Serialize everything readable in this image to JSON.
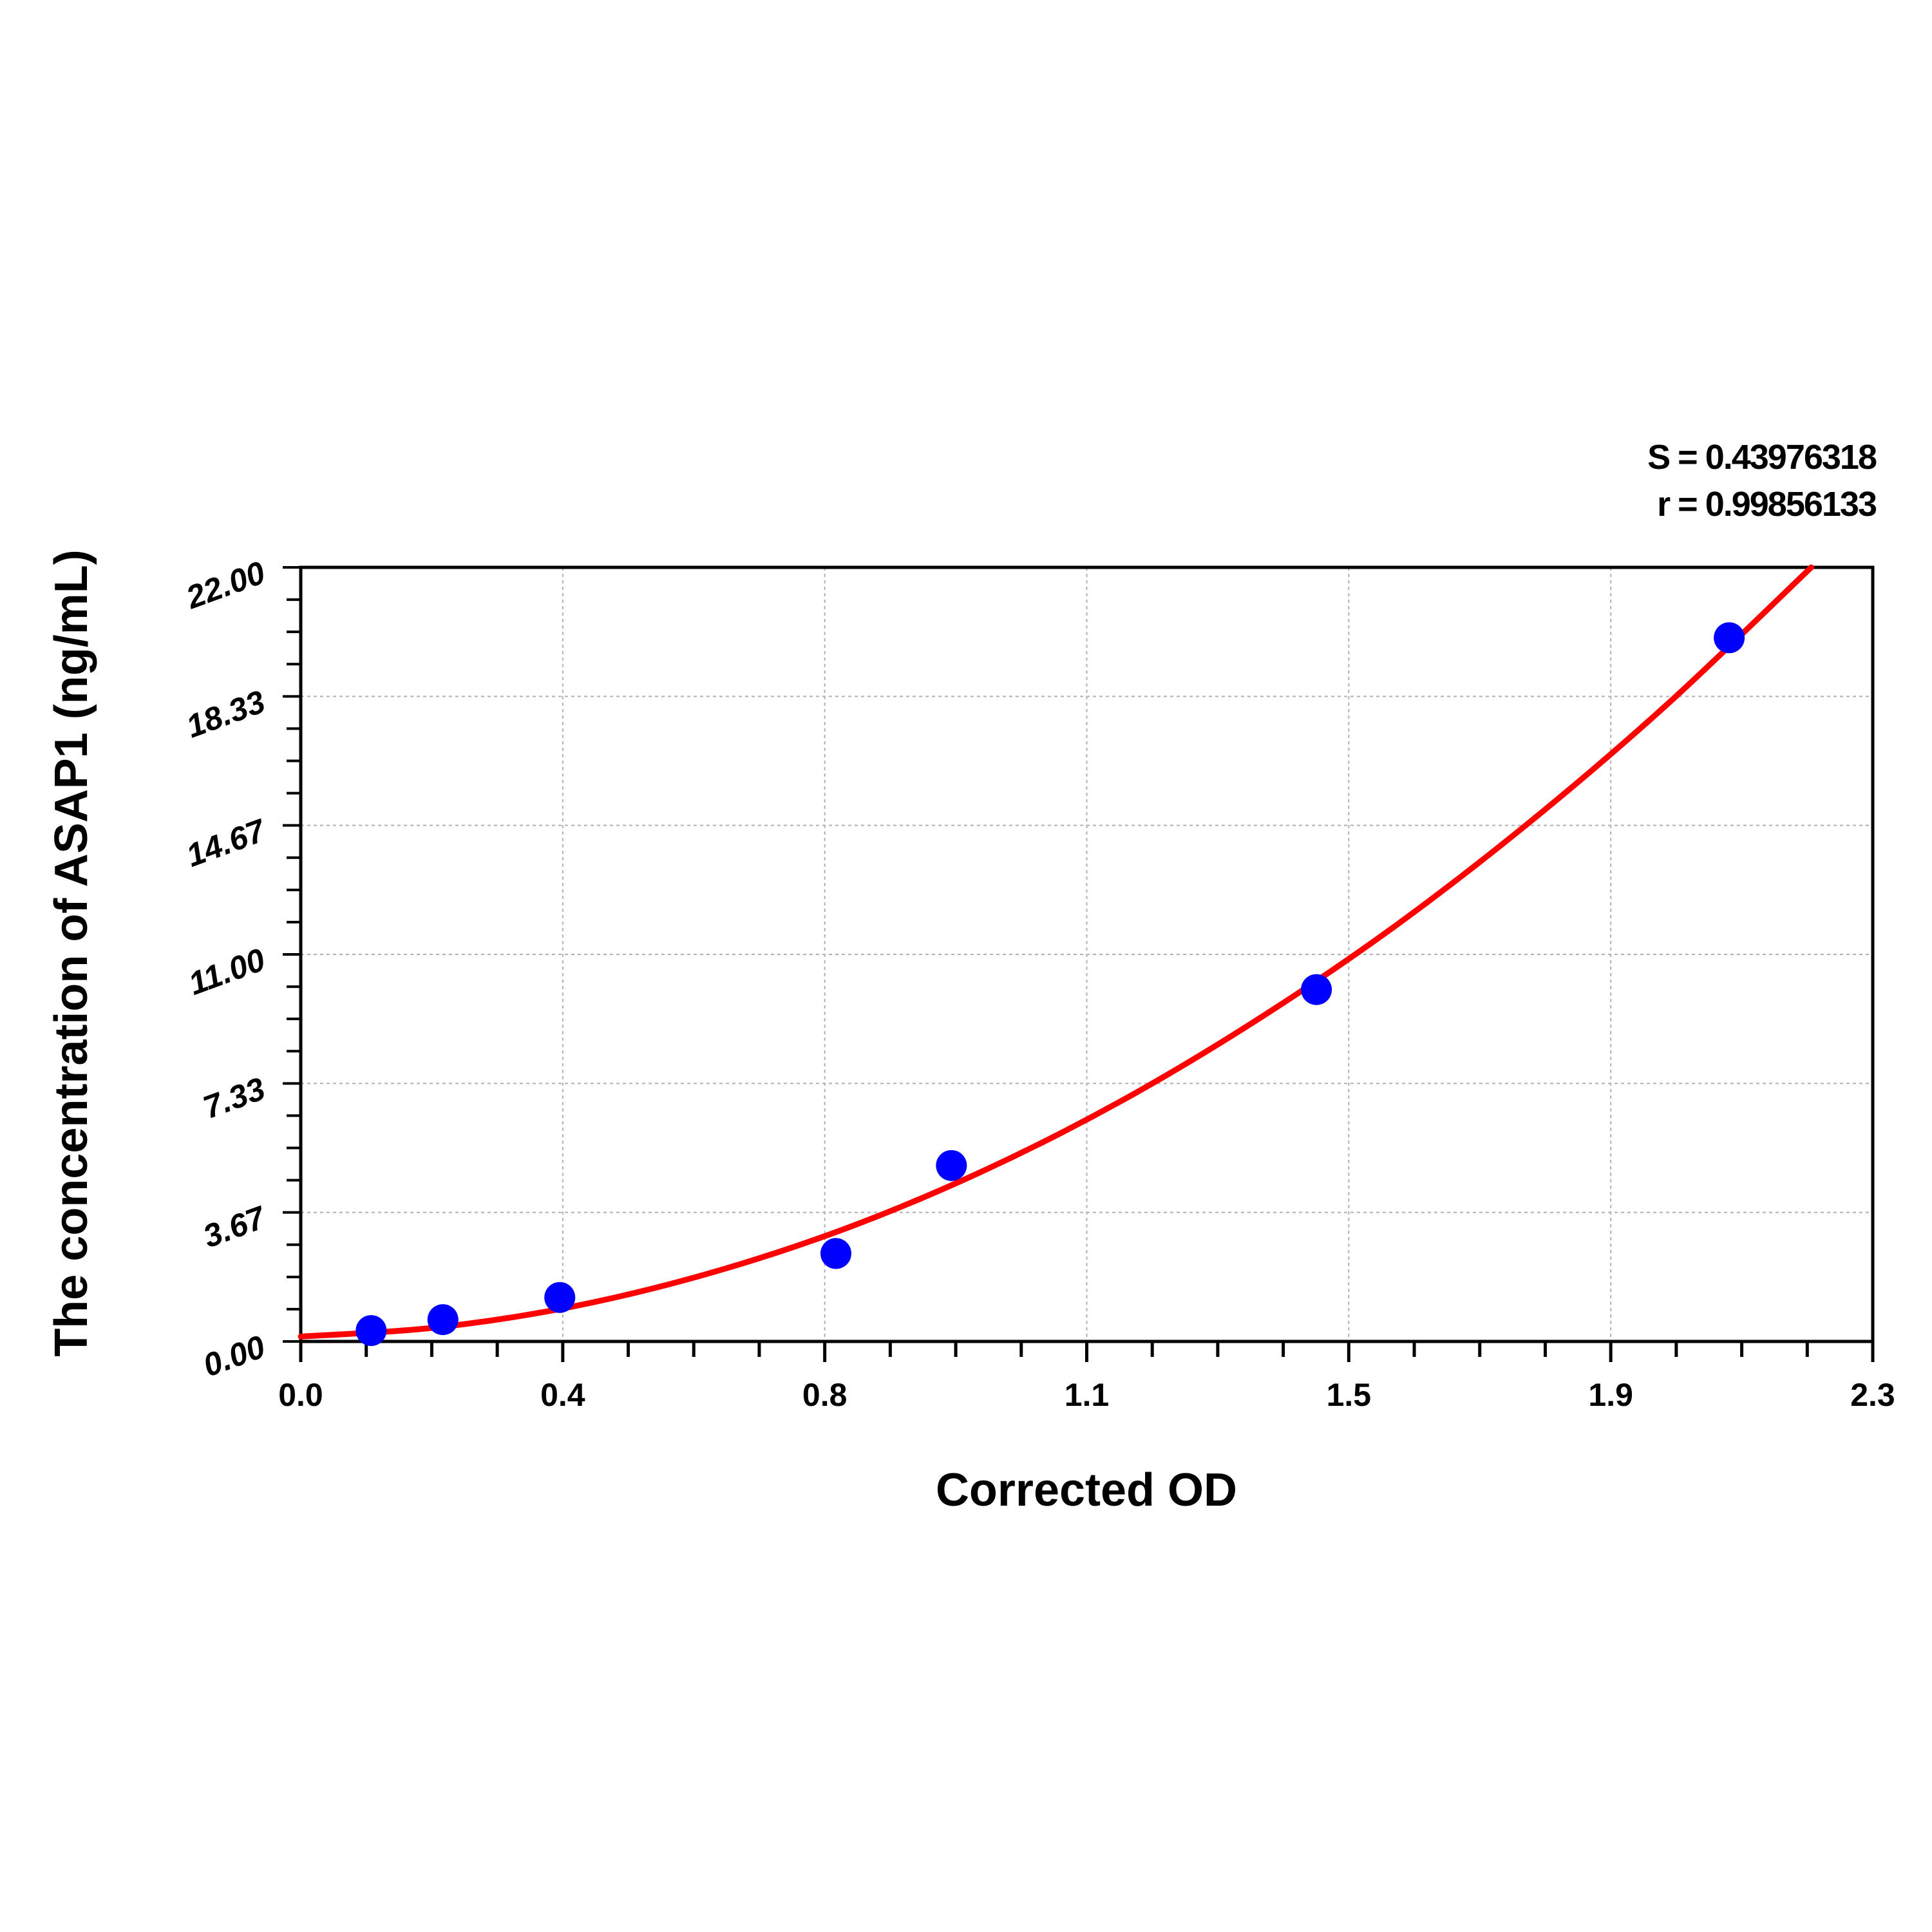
{
  "chart_data": {
    "type": "scatter",
    "title": "",
    "xlabel": "Corrected OD",
    "ylabel": "The concentration of ASAP1 (ng/mL)",
    "xlim": [
      0,
      2.3
    ],
    "ylim": [
      0,
      22
    ],
    "x_tick_labels": [
      "0.0",
      "0.4",
      "0.8",
      "1.1",
      "1.5",
      "1.9",
      "2.3"
    ],
    "y_tick_labels": [
      "0.00",
      "3.67",
      "7.33",
      "11.00",
      "14.67",
      "18.33",
      "22.00"
    ],
    "grid": true,
    "stats": [
      "S = 0.43976318",
      "r = 0.99856133"
    ],
    "colors": {
      "points": "#0000ff",
      "curve": "#ff0000",
      "grid": "#b0b0b0"
    },
    "series": [
      {
        "type": "scatter",
        "x": [
          0.103,
          0.208,
          0.379,
          0.783,
          0.952,
          1.486,
          2.09
        ],
        "y": [
          0.31,
          0.62,
          1.25,
          2.5,
          5,
          10,
          20
        ]
      },
      {
        "type": "line",
        "x": [
          0,
          0.2,
          0.4,
          0.6,
          0.8,
          1.0,
          1.2,
          1.4,
          1.6,
          1.8,
          2.0,
          2.21
        ],
        "y": [
          0.14,
          0.4,
          1.0,
          1.95,
          3.23,
          4.86,
          6.83,
          9.15,
          11.79,
          14.79,
          18.12,
          22.0
        ]
      }
    ]
  }
}
